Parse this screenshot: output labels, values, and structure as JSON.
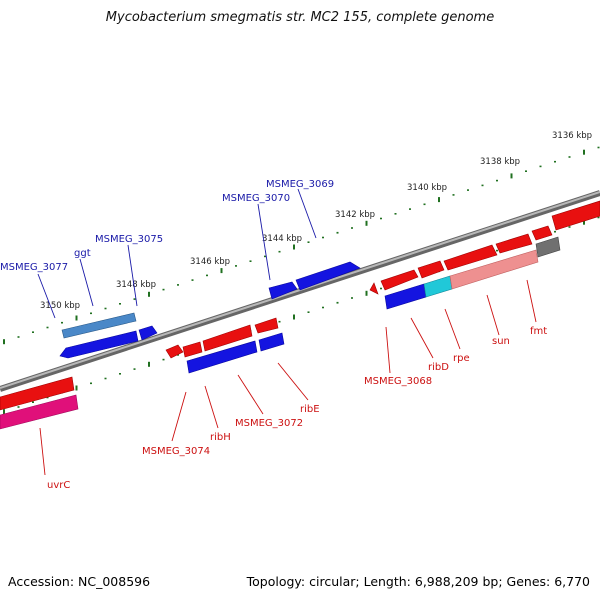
{
  "title": "Mycobacterium smegmatis str. MC2 155, complete genome",
  "footer": {
    "accession": "Accession: NC_008596",
    "summary": "Topology: circular; Length: 6,988,209 bp; Genes: 6,770"
  },
  "scale_labels": [
    "3136 kbp",
    "3138 kbp",
    "3140 kbp",
    "3142 kbp",
    "3144 kbp",
    "3146 kbp",
    "3148 kbp",
    "3150 kbp"
  ],
  "top_labels": [
    "MSMEG_3077",
    "ggt",
    "MSMEG_3075",
    "MSMEG_3070",
    "MSMEG_3069"
  ],
  "bottom_labels": [
    "uvrC",
    "MSMEG_3074",
    "ribH",
    "MSMEG_3072",
    "ribE",
    "MSMEG_3068",
    "ribD",
    "rpe",
    "sun",
    "fmt"
  ],
  "colors": {
    "forward_cds": "#1010e0",
    "reverse_cds": "#e81010",
    "rna": "#3a78b8",
    "pseudo": "#ee9090",
    "magenta": "#e0107a",
    "cyan": "#20c8d8",
    "backbone": "#888888",
    "tick": "#207020"
  }
}
